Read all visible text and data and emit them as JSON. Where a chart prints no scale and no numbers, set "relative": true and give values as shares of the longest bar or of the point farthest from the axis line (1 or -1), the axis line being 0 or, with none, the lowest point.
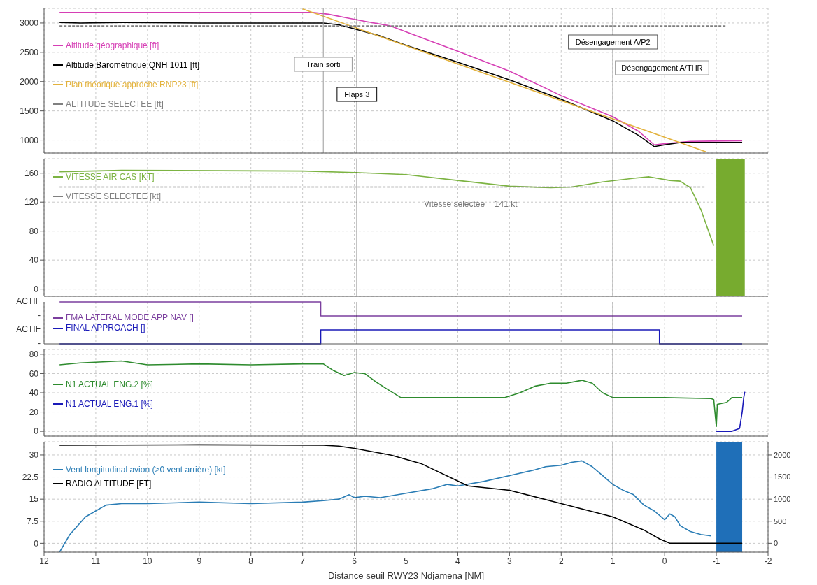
{
  "chart_data": [
    {
      "type": "line",
      "xlim": [
        12,
        -2
      ],
      "xticks": [
        12,
        11,
        10,
        9,
        8,
        7,
        6,
        5,
        4,
        3,
        2,
        1,
        0,
        -1,
        -2
      ],
      "tick_labels": "y",
      "grid": true,
      "legend": "left",
      "ylim": [
        780,
        3250
      ],
      "yticks": [
        1000,
        1500,
        2000,
        2500,
        3000
      ],
      "series": [
        {
          "name": "Altitude géographique [ft]",
          "color": "#d63fb5",
          "x": [
            11.7,
            10.5,
            9,
            7,
            6.8,
            6.5,
            6.1,
            5.8,
            5.3,
            4,
            3,
            2,
            1,
            0.5,
            0.2,
            0,
            -0.5,
            -1.5
          ],
          "values": [
            3180,
            3180,
            3180,
            3180,
            3180,
            3150,
            3080,
            3030,
            2950,
            2520,
            2180,
            1760,
            1400,
            1150,
            920,
            940,
            980,
            990
          ]
        },
        {
          "name": "Altitude Barométrique QNH 1011 [ft]",
          "color": "#000000",
          "x": [
            11.7,
            11.3,
            10.5,
            9,
            7,
            6.6,
            6.3,
            6,
            5.5,
            5,
            4,
            3,
            2,
            1,
            0.5,
            0.2,
            0,
            -0.3,
            -1.5
          ],
          "values": [
            3010,
            3000,
            3010,
            3000,
            3000,
            3000,
            2970,
            2900,
            2780,
            2620,
            2330,
            2030,
            1700,
            1330,
            1080,
            890,
            920,
            960,
            960
          ]
        },
        {
          "name": "Plan théorique approche RNP23 [ft]",
          "color": "#e3b23c",
          "x": [
            7,
            -0.8
          ],
          "values": [
            3240,
            800
          ]
        },
        {
          "name": "ALTITUDE SELECTEE [ft]",
          "color": "#808080",
          "line_style": "dashed",
          "x": [
            11.7,
            -1.2
          ],
          "values": [
            2950,
            2950
          ]
        }
      ],
      "ref_lines": [
        {
          "axis": "x",
          "value": 6.6,
          "label": "Train sorti",
          "color": "#999999"
        },
        {
          "axis": "x",
          "value": 5.95,
          "label": "Flaps 3",
          "color": "#000000"
        },
        {
          "axis": "x",
          "value": 1,
          "label": "Désengagement A/P2",
          "color": "#555555"
        },
        {
          "axis": "x",
          "value": 0.05,
          "label": "Désengagement A/THR",
          "color": "#999999"
        }
      ]
    },
    {
      "type": "line",
      "xlim": [
        12,
        -2
      ],
      "xticks": [
        12,
        11,
        10,
        9,
        8,
        7,
        6,
        5,
        4,
        3,
        2,
        1,
        0,
        -1,
        -2
      ],
      "tick_labels": "y",
      "grid": true,
      "legend": "left",
      "ylim": [
        -10,
        180
      ],
      "yticks": [
        0,
        40,
        80,
        120,
        160
      ],
      "series": [
        {
          "name": "VITESSE AIR CAS [KT]",
          "color": "#7cb342",
          "x": [
            11.7,
            10.5,
            7,
            6,
            5,
            4,
            3,
            2.2,
            1.8,
            1.2,
            0.6,
            0.3,
            -0.1,
            -0.3,
            -0.5,
            -0.7,
            -0.95
          ],
          "values": [
            162,
            164,
            163,
            161,
            158,
            150,
            142,
            140,
            141,
            148,
            153,
            155,
            150,
            149,
            140,
            110,
            60
          ]
        },
        {
          "name": "VITESSE SELECTEE [kt]",
          "color": "#808080",
          "line_style": "dashed",
          "x": [
            11.7,
            -0.8
          ],
          "values": [
            141,
            141
          ]
        }
      ],
      "annotations": [
        "Vitesse sélectée = 141 kt"
      ],
      "bands": [
        {
          "axis": "x",
          "from": -1,
          "to": -1.55,
          "color": "#77ab2f"
        }
      ],
      "ref_lines": [
        {
          "axis": "x",
          "value": 5.95,
          "color": "#000000"
        },
        {
          "axis": "x",
          "value": 1,
          "color": "#555555"
        }
      ]
    },
    {
      "type": "step",
      "xlim": [
        12,
        -2
      ],
      "xticks": [
        12,
        11,
        10,
        9,
        8,
        7,
        6,
        5,
        4,
        3,
        2,
        1,
        0,
        -1,
        -2
      ],
      "tick_labels": "y",
      "grid": "x",
      "legend": "left",
      "relative": true,
      "annotations": [
        "ACTIF",
        "-",
        "ACTIF",
        "-"
      ],
      "series": [
        {
          "name": "FMA LATERAL MODE APP NAV []",
          "color": "#7b3f9e",
          "x": [
            11.7,
            6.65,
            -1.5
          ],
          "values": [
            1,
            0.667,
            0.667
          ]
        },
        {
          "name": "FINAL APPROACH []",
          "color": "#1a1ab8",
          "x": [
            11.7,
            6.65,
            0.1,
            -1.5
          ],
          "values": [
            0,
            0.333,
            0,
            0
          ]
        }
      ],
      "ref_lines": [
        {
          "axis": "x",
          "value": 5.95,
          "color": "#000000"
        },
        {
          "axis": "x",
          "value": 1,
          "color": "#555555"
        }
      ]
    },
    {
      "type": "line",
      "xlim": [
        12,
        -2
      ],
      "xticks": [
        12,
        11,
        10,
        9,
        8,
        7,
        6,
        5,
        4,
        3,
        2,
        1,
        0,
        -1,
        -2
      ],
      "tick_labels": "y",
      "grid": true,
      "legend": "left",
      "ylim": [
        -5,
        85
      ],
      "yticks": [
        0,
        20,
        40,
        60,
        80
      ],
      "series": [
        {
          "name": "N1 ACTUAL ENG.2 [%]",
          "color": "#2e8b2e",
          "x": [
            11.7,
            11.3,
            10.5,
            10,
            9,
            8,
            7,
            6.6,
            6.4,
            6.2,
            6,
            5.8,
            5.6,
            5.4,
            5.1,
            4,
            3.1,
            2.8,
            2.5,
            2.2,
            1.9,
            1.6,
            1.4,
            1.2,
            1,
            0,
            -0.9,
            -0.95,
            -1,
            -1.02,
            -1.2,
            -1.3,
            -1.5
          ],
          "values": [
            69,
            71,
            73,
            69,
            70,
            69,
            70,
            70,
            63,
            58,
            61,
            60,
            52,
            45,
            35,
            35,
            35,
            40,
            47,
            50,
            50,
            53,
            50,
            40,
            35,
            35,
            34,
            33,
            5,
            28,
            30,
            35,
            35
          ]
        },
        {
          "name": "N1 ACTUAL ENG.1 [%]",
          "color": "#1a1ab8",
          "x": [
            -1,
            -1.3,
            -1.45,
            -1.5,
            -1.53,
            -1.55
          ],
          "values": [
            0,
            0,
            3,
            20,
            35,
            41
          ]
        }
      ],
      "ref_lines": [
        {
          "axis": "x",
          "value": 5.95,
          "color": "#000000"
        },
        {
          "axis": "x",
          "value": 1,
          "color": "#555555"
        }
      ]
    },
    {
      "type": "line",
      "xlim": [
        12,
        -2
      ],
      "xticks": [
        12,
        11,
        10,
        9,
        8,
        7,
        6,
        5,
        4,
        3,
        2,
        1,
        0,
        -1,
        -2
      ],
      "grid": true,
      "legend": "left",
      "xlabel": "Distance seuil RWY23 Ndjamena [NM]",
      "ylim": [
        -3,
        34.5
      ],
      "yticks": [
        0,
        7.5,
        15,
        22.5,
        30
      ],
      "y2lim": [
        -200,
        2300
      ],
      "y2ticks": [
        0,
        500,
        1000,
        1500,
        2000
      ],
      "series": [
        {
          "name": "Vent longitudinal avion (>0 vent arrière) [kt]",
          "color": "#2a7db5",
          "x": [
            11.7,
            11.5,
            11.2,
            11,
            10.8,
            10.5,
            10,
            9,
            8,
            7,
            6.6,
            6.3,
            6.1,
            6,
            5.8,
            5.5,
            5,
            4.5,
            4.2,
            4,
            3.5,
            3,
            2.5,
            2.3,
            2,
            1.8,
            1.6,
            1.4,
            1.2,
            1,
            0.8,
            0.6,
            0.4,
            0.2,
            0,
            -0.1,
            -0.2,
            -0.3,
            -0.5,
            -0.7,
            -0.9
          ],
          "values": [
            -3,
            3,
            9,
            11,
            13,
            13.5,
            13.5,
            14,
            13.5,
            14,
            14.5,
            15,
            16.5,
            15.5,
            16,
            15.5,
            17,
            18.5,
            20,
            19.5,
            21,
            23,
            25,
            26,
            26.5,
            27.5,
            28,
            26,
            23,
            20,
            18,
            16.5,
            13,
            11,
            8,
            10,
            9,
            6,
            4,
            3,
            2.5
          ]
        },
        {
          "name": "RADIO ALTITUDE [FT]",
          "color": "#000000",
          "axis": "y2",
          "x": [
            11.7,
            9,
            6.6,
            6.3,
            6,
            5.3,
            4.7,
            3.8,
            3,
            2,
            1,
            0.4,
            0.1,
            -0.1,
            -1.5
          ],
          "values": [
            2220,
            2230,
            2220,
            2200,
            2150,
            2000,
            1800,
            1300,
            1200,
            900,
            600,
            300,
            100,
            0,
            0
          ]
        }
      ],
      "bands": [
        {
          "axis": "x",
          "from": -1,
          "to": -1.5,
          "color": "#1f6fb8"
        }
      ],
      "ref_lines": [
        {
          "axis": "x",
          "value": 5.95,
          "color": "#000000"
        },
        {
          "axis": "x",
          "value": 1,
          "color": "#555555"
        }
      ]
    }
  ]
}
